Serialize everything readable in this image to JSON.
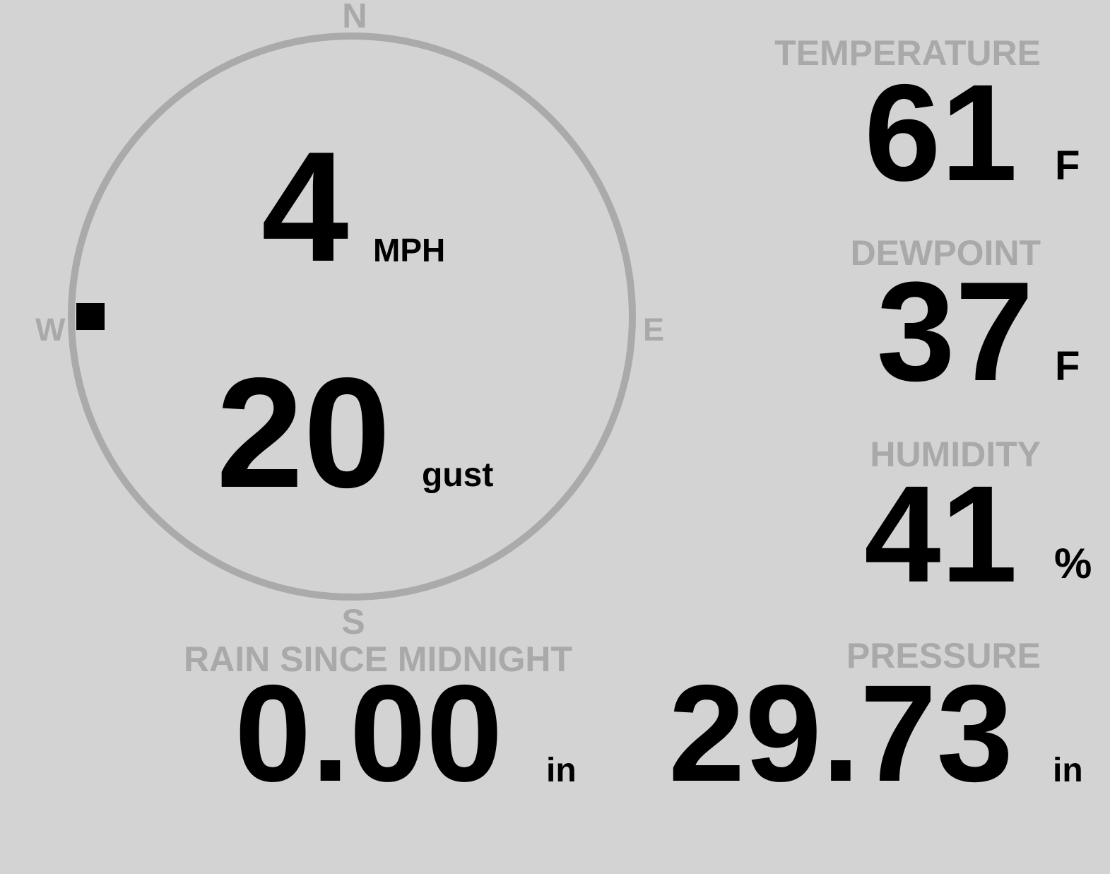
{
  "wind": {
    "speed": "4",
    "speed_unit": "MPH",
    "gust": "20",
    "gust_unit": "gust",
    "direction_deg": 270,
    "compass": {
      "n": "N",
      "e": "E",
      "s": "S",
      "w": "W"
    }
  },
  "temperature": {
    "label": "TEMPERATURE",
    "value": "61",
    "unit": "F"
  },
  "dewpoint": {
    "label": "DEWPOINT",
    "value": "37",
    "unit": "F"
  },
  "humidity": {
    "label": "HUMIDITY",
    "value": "41",
    "unit": "%"
  },
  "pressure": {
    "label": "PRESSURE",
    "value": "29.73",
    "unit": "in"
  },
  "rain": {
    "label": "RAIN SINCE MIDNIGHT",
    "value": "0.00",
    "unit": "in"
  },
  "colors": {
    "background": "#d3d3d3",
    "label": "#a9a9a9",
    "value": "#000000",
    "ring": "#aaaaaa"
  }
}
